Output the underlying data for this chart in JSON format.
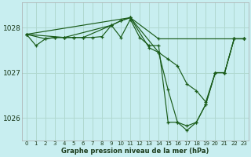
{
  "background_color": "#c8eef0",
  "grid_color": "#b0d8d0",
  "line_color": "#1a5c1a",
  "xlabel": "Graphe pression niveau de la mer (hPa)",
  "xlim": [
    -0.5,
    23.5
  ],
  "ylim": [
    1025.5,
    1028.55
  ],
  "yticks": [
    1026,
    1027,
    1028
  ],
  "xticks": [
    0,
    1,
    2,
    3,
    4,
    5,
    6,
    7,
    8,
    9,
    10,
    11,
    12,
    13,
    14,
    15,
    16,
    17,
    18,
    19,
    20,
    21,
    22,
    23
  ],
  "lines": [
    {
      "x": [
        0,
        1,
        2,
        3,
        4,
        5,
        6,
        7,
        8,
        9,
        10,
        11,
        12,
        13,
        14,
        15,
        16,
        17,
        18,
        19,
        20,
        21,
        22,
        23
      ],
      "y": [
        1027.85,
        1027.6,
        1027.75,
        1027.78,
        1027.78,
        1027.78,
        1027.78,
        1027.78,
        1027.8,
        1028.05,
        1027.78,
        1028.18,
        1027.78,
        1027.6,
        1027.6,
        1025.9,
        1025.9,
        1025.82,
        1025.9,
        1026.3,
        1027.0,
        1027.0,
        1027.75,
        1027.75
      ]
    },
    {
      "x": [
        0,
        2,
        3,
        4,
        5,
        6,
        9,
        10,
        11,
        14,
        22,
        23
      ],
      "y": [
        1027.85,
        1027.75,
        1027.78,
        1027.78,
        1027.78,
        1027.78,
        1028.05,
        1028.15,
        1028.22,
        1027.75,
        1027.75,
        1027.75
      ]
    },
    {
      "x": [
        0,
        4,
        9,
        10,
        11,
        13,
        14,
        15,
        16,
        17,
        18,
        19,
        20,
        21,
        22,
        23
      ],
      "y": [
        1027.85,
        1027.78,
        1028.05,
        1028.15,
        1028.22,
        1027.55,
        1027.45,
        1027.3,
        1027.15,
        1026.75,
        1026.6,
        1026.35,
        1027.0,
        1027.0,
        1027.75,
        1027.75
      ]
    },
    {
      "x": [
        0,
        11,
        14,
        15,
        16,
        17,
        18,
        19,
        20,
        21,
        22,
        23
      ],
      "y": [
        1027.85,
        1028.22,
        1027.45,
        1026.62,
        1025.9,
        1025.72,
        1025.9,
        1026.3,
        1027.0,
        1027.0,
        1027.75,
        1027.75
      ]
    }
  ]
}
